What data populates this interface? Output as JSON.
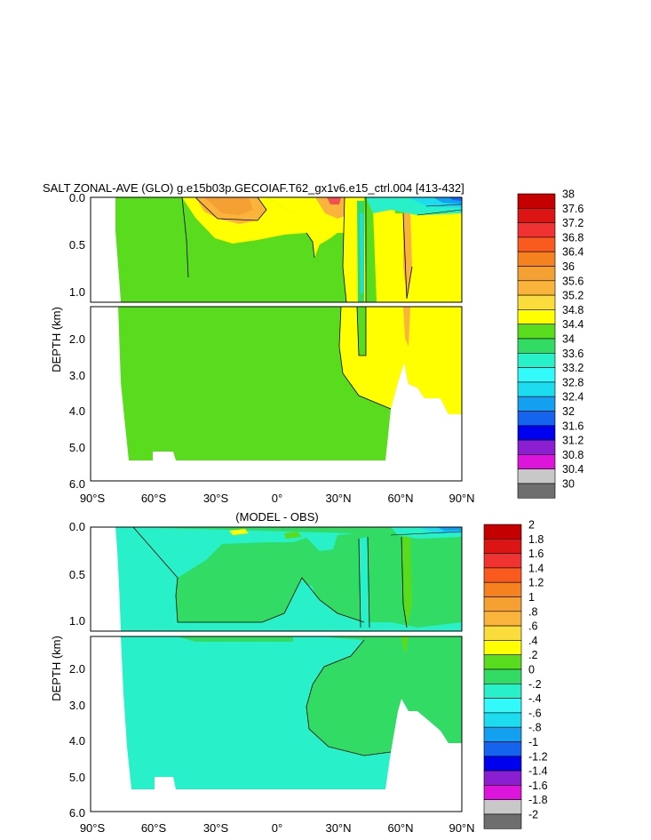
{
  "chart_data": [
    {
      "type": "contour",
      "title": "SALT ZONAL-AVE (GLO) g.e15b03p.GECOIAF.T62_gx1v6.e15_ctrl.004 [413-432]",
      "ylabel": "DEPTH (km)",
      "x_ticks": [
        "90°S",
        "60°S",
        "30°S",
        "0°",
        "30°N",
        "60°N",
        "90°N"
      ],
      "x_range": [
        -90,
        90
      ],
      "upper_panel": {
        "y_ticks": [
          "0.0",
          "0.5",
          "1.0"
        ],
        "y_range": [
          0.0,
          1.15
        ]
      },
      "lower_panel": {
        "y_ticks": [
          "2.0",
          "3.0",
          "4.0",
          "5.0",
          "6.0"
        ],
        "y_range": [
          1.15,
          6.0
        ]
      },
      "colorbar_labels": [
        "38",
        "37.6",
        "37.2",
        "36.8",
        "36.4",
        "36",
        "35.6",
        "35.2",
        "34.8",
        "34.4",
        "34",
        "33.6",
        "33.2",
        "32.8",
        "32.4",
        "32",
        "31.6",
        "31.2",
        "30.8",
        "30.4",
        "30"
      ],
      "colorbar_colors": [
        "#c40000",
        "#dc1414",
        "#f03232",
        "#fa5a1e",
        "#f5821e",
        "#f5a032",
        "#fab43c",
        "#fadc3c",
        "#ffff00",
        "#5adc1e",
        "#32dc64",
        "#28f0c8",
        "#32fafa",
        "#1edcf0",
        "#14a0f0",
        "#1464f0",
        "#0000f0",
        "#8c1ed2",
        "#dc14dc",
        "#c8c8c8",
        "#6e6e6e"
      ]
    },
    {
      "type": "contour",
      "title": "(MODEL - OBS)",
      "ylabel": "DEPTH (km)",
      "x_ticks": [
        "90°S",
        "60°S",
        "30°S",
        "0°",
        "30°N",
        "60°N",
        "90°N"
      ],
      "x_range": [
        -90,
        90
      ],
      "upper_panel": {
        "y_ticks": [
          "0.0",
          "0.5",
          "1.0"
        ],
        "y_range": [
          0.0,
          1.15
        ]
      },
      "lower_panel": {
        "y_ticks": [
          "2.0",
          "3.0",
          "4.0",
          "5.0",
          "6.0"
        ],
        "y_range": [
          1.15,
          6.0
        ]
      },
      "colorbar_labels": [
        "2",
        "1.8",
        "1.6",
        "1.4",
        "1.2",
        "1",
        ".8",
        ".6",
        ".4",
        ".2",
        "0",
        "-.2",
        "-.4",
        "-.6",
        "-.8",
        "-1",
        "-1.2",
        "-1.4",
        "-1.6",
        "-1.8",
        "-2"
      ],
      "colorbar_colors": [
        "#c40000",
        "#dc1414",
        "#f03232",
        "#fa5a1e",
        "#f5821e",
        "#f5a032",
        "#fab43c",
        "#fadc3c",
        "#ffff00",
        "#5adc1e",
        "#32dc64",
        "#28f0c8",
        "#32fafa",
        "#1edcf0",
        "#14a0f0",
        "#1464f0",
        "#0000f0",
        "#8c1ed2",
        "#dc14dc",
        "#c8c8c8",
        "#6e6e6e"
      ]
    }
  ]
}
